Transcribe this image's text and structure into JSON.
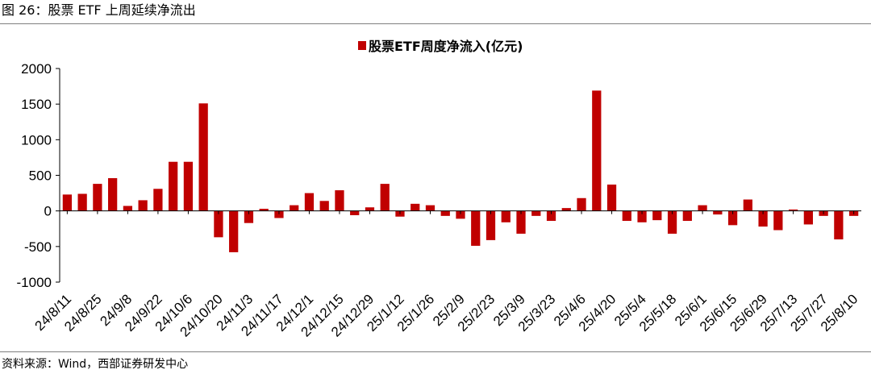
{
  "figure": {
    "title": "图 26：股票 ETF 上周延续净流出",
    "source": "资料来源：Wind，西部证券研发中心"
  },
  "colors": {
    "bar": "#c00000",
    "axis": "#000000",
    "rule": "#7f7f7f"
  },
  "chart_data": {
    "type": "bar",
    "title": "",
    "xlabel": "",
    "ylabel": "",
    "ylim": [
      -1000,
      2000
    ],
    "yticks": [
      -1000,
      -500,
      0,
      500,
      1000,
      1500,
      2000
    ],
    "grid": false,
    "legend": {
      "position": "top-center",
      "entries": [
        "股票ETF周度净流入(亿元)"
      ]
    },
    "series": [
      {
        "name": "股票ETF周度净流入(亿元)",
        "values": [
          230,
          240,
          380,
          460,
          70,
          150,
          310,
          690,
          690,
          1510,
          -370,
          -580,
          -170,
          30,
          -100,
          80,
          250,
          140,
          290,
          -60,
          50,
          380,
          -80,
          100,
          80,
          -70,
          -110,
          -490,
          -410,
          -160,
          -320,
          -70,
          -140,
          40,
          180,
          1690,
          370,
          -140,
          -160,
          -130,
          -320,
          -140,
          80,
          -50,
          -200,
          160,
          -220,
          -270,
          20,
          -190,
          -70,
          -400,
          -70
        ]
      }
    ],
    "xtick_labels": [
      "24/8/11",
      "24/8/25",
      "24/9/8",
      "24/9/22",
      "24/10/6",
      "24/10/20",
      "24/11/3",
      "24/11/17",
      "24/12/1",
      "24/12/15",
      "24/12/29",
      "25/1/12",
      "25/1/26",
      "25/2/9",
      "25/2/23",
      "25/3/9",
      "25/3/23",
      "25/4/6",
      "25/4/20",
      "25/5/4",
      "25/5/18",
      "25/6/1",
      "25/6/15",
      "25/6/29",
      "25/7/13",
      "25/7/27",
      "25/8/10"
    ]
  }
}
